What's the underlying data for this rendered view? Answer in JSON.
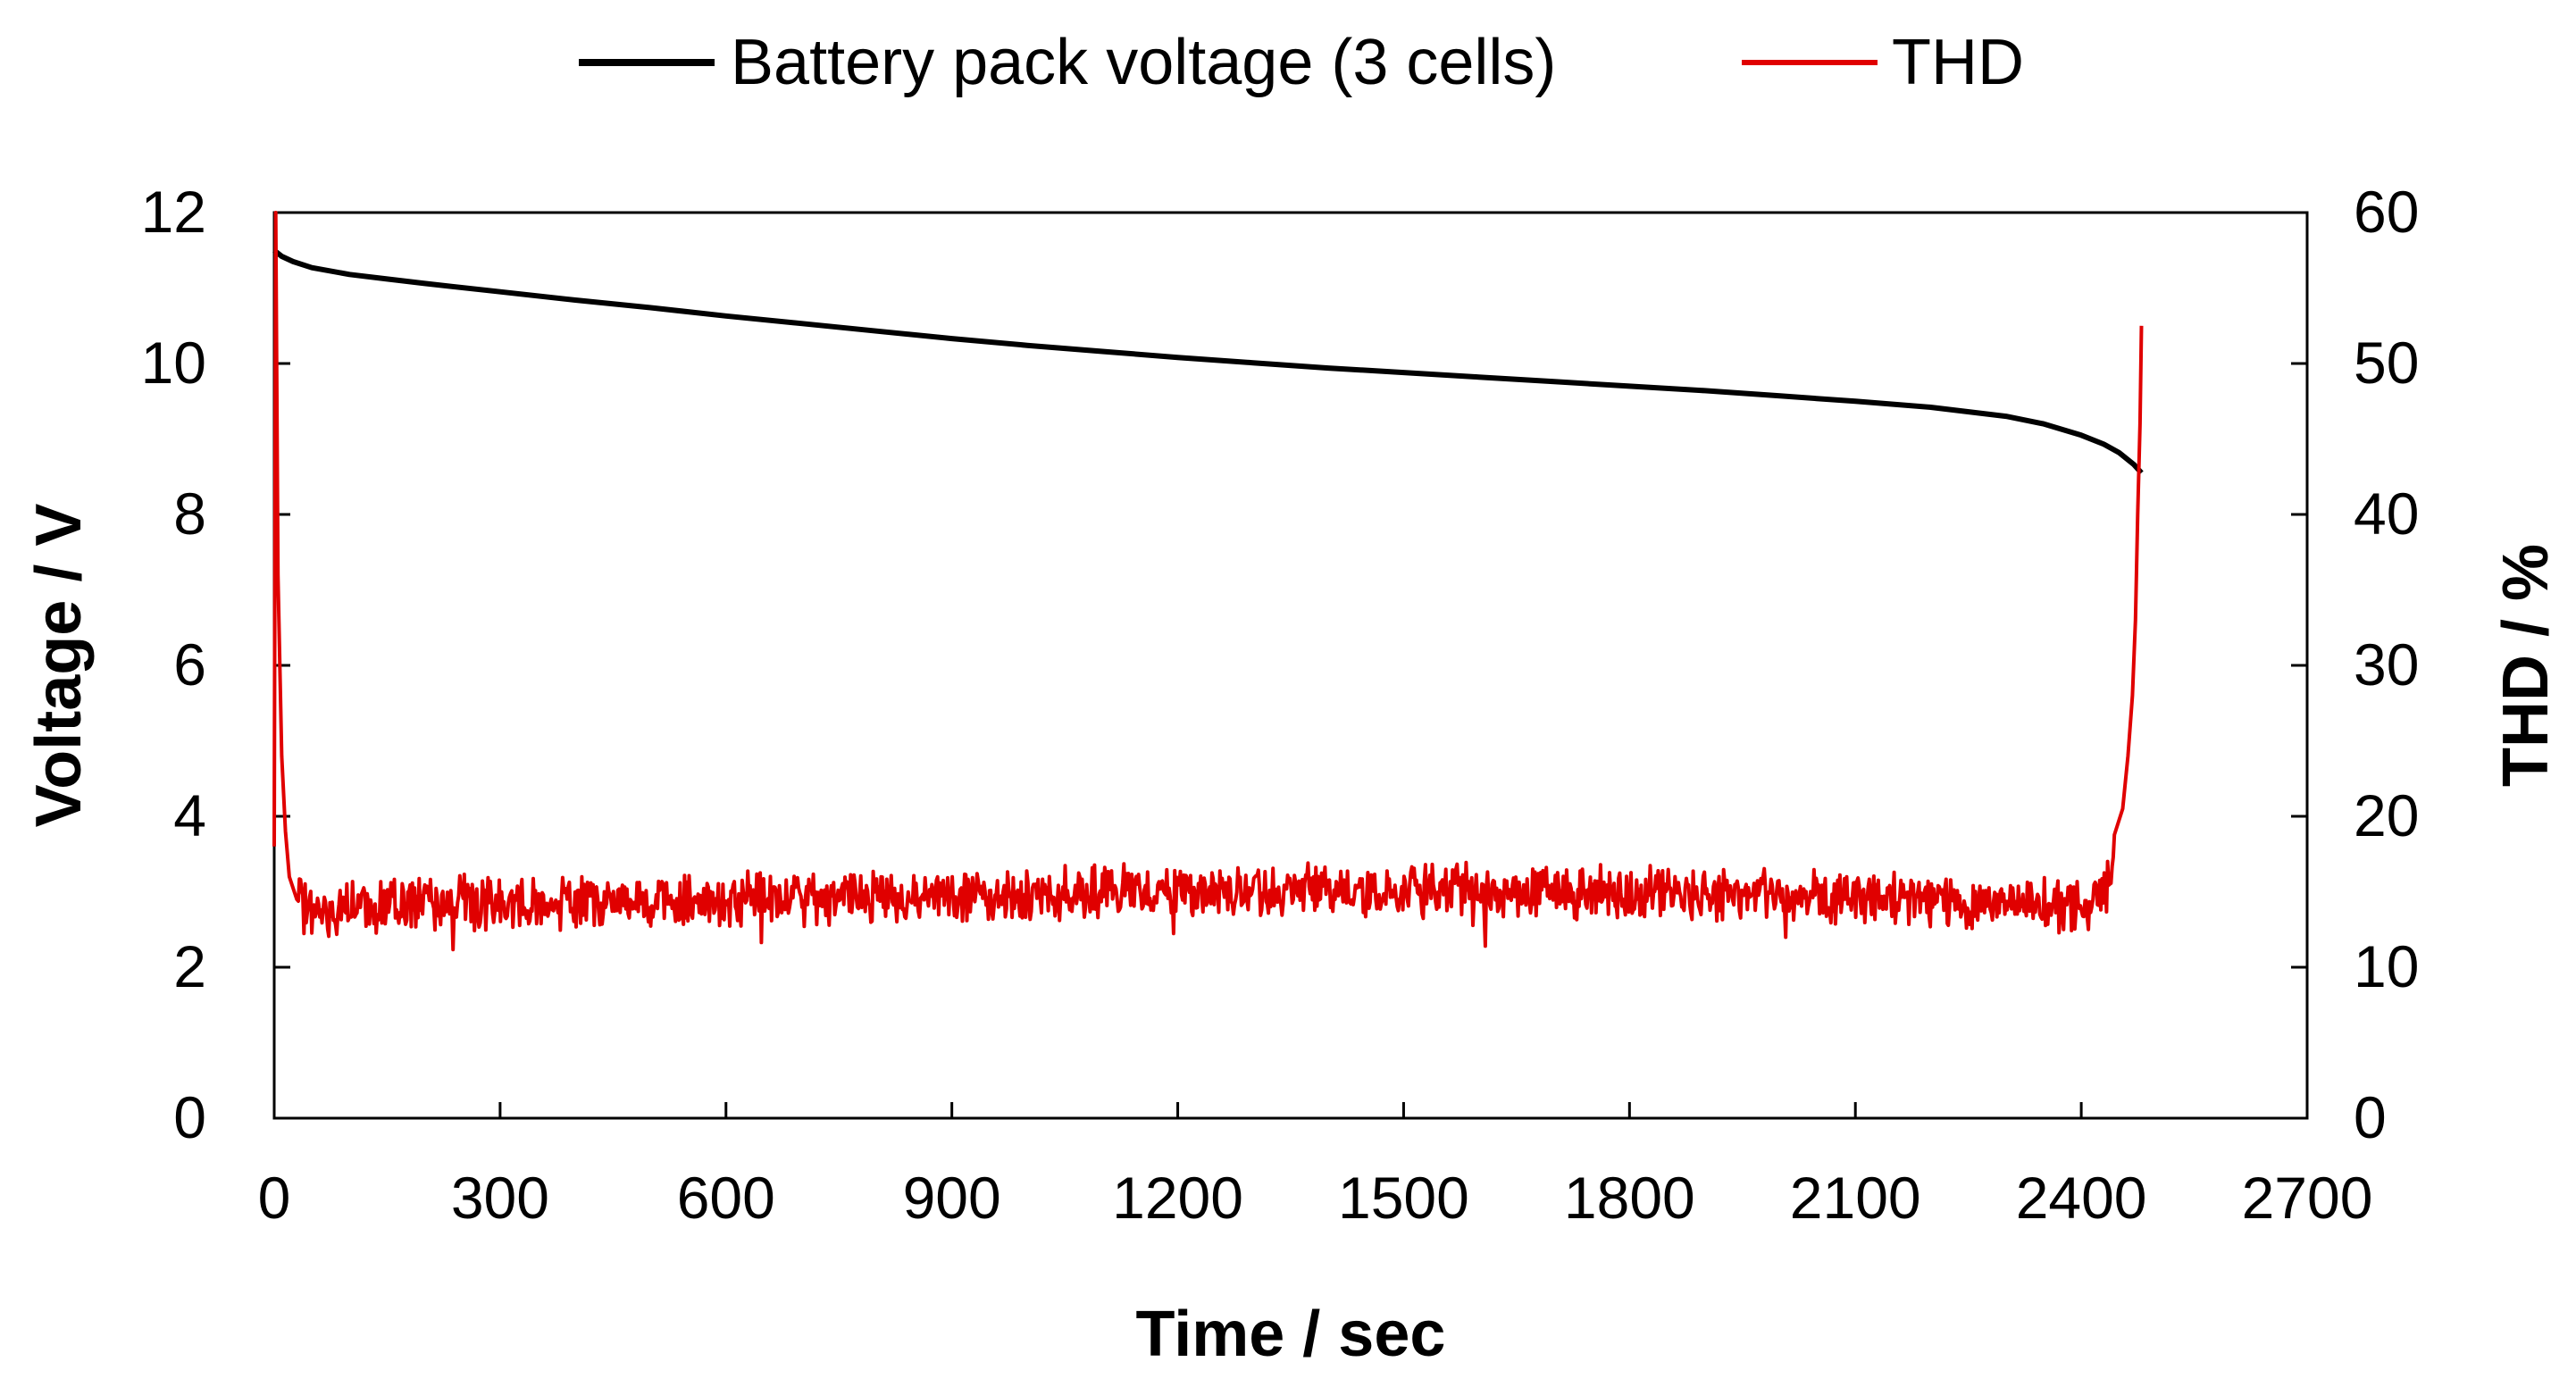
{
  "chart_data": {
    "type": "line",
    "title": "",
    "xlabel": "Time / sec",
    "ylabel": "Voltage / V",
    "y2label": "THD / %",
    "xlim": [
      0,
      2700
    ],
    "ylim": [
      0,
      12
    ],
    "y2lim": [
      0,
      60
    ],
    "x_ticks": [
      "0",
      "300",
      "600",
      "900",
      "1200",
      "1500",
      "1800",
      "2100",
      "2400",
      "2700"
    ],
    "y_ticks": [
      "0",
      "2",
      "4",
      "6",
      "8",
      "10",
      "12"
    ],
    "y2_ticks": [
      "0",
      "10",
      "20",
      "30",
      "40",
      "50",
      "60"
    ],
    "grid": false,
    "legend_position": "top-center",
    "series": [
      {
        "name": "Battery pack voltage (3 cells)",
        "axis": "left",
        "color": "#000000",
        "x": [
          0,
          10,
          25,
          50,
          100,
          150,
          200,
          300,
          400,
          500,
          600,
          700,
          800,
          900,
          1000,
          1100,
          1200,
          1300,
          1400,
          1500,
          1600,
          1700,
          1800,
          1900,
          2000,
          2100,
          2200,
          2300,
          2350,
          2400,
          2430,
          2450,
          2470,
          2480
        ],
        "values": [
          11.5,
          11.42,
          11.35,
          11.27,
          11.18,
          11.12,
          11.06,
          10.95,
          10.84,
          10.74,
          10.63,
          10.53,
          10.43,
          10.33,
          10.24,
          10.16,
          10.08,
          10.01,
          9.94,
          9.88,
          9.82,
          9.76,
          9.7,
          9.64,
          9.57,
          9.5,
          9.42,
          9.3,
          9.2,
          9.05,
          8.93,
          8.82,
          8.66,
          8.55
        ]
      },
      {
        "name": "THD",
        "axis": "right",
        "color": "#e00000",
        "x": [
          0,
          2,
          5,
          10,
          15,
          20,
          30,
          45,
          60,
          100,
          200,
          400,
          600,
          800,
          1000,
          1200,
          1400,
          1600,
          1800,
          2000,
          2200,
          2350,
          2400,
          2420,
          2435,
          2445,
          2455,
          2462,
          2468,
          2472,
          2475,
          2478,
          2480
        ],
        "values": [
          18,
          60,
          36,
          24,
          19,
          16,
          14.5,
          13.8,
          13.5,
          14,
          14.3,
          14.3,
          14.4,
          14.6,
          14.8,
          15,
          15.1,
          15.1,
          15,
          14.8,
          14.5,
          14.2,
          14.1,
          14.4,
          15.5,
          17.5,
          20.5,
          24,
          28,
          33,
          40,
          46,
          52.5
        ]
      }
    ],
    "annotations": []
  }
}
